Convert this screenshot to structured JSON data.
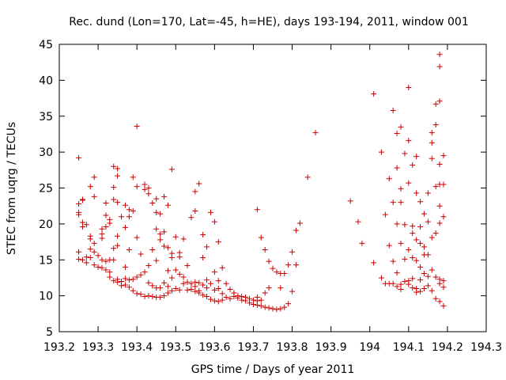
{
  "chart_data": {
    "type": "scatter",
    "title": "Rec. dund (Lon=170, Lat=-45, h=HE), days 193-194, 2011, window 001",
    "xlabel": "GPS time / Days of year 2011",
    "ylabel": "STEC from uqrg / TECUs",
    "xlim": [
      193.2,
      194.3
    ],
    "ylim": [
      5,
      45
    ],
    "xticks": [
      193.2,
      193.3,
      193.4,
      193.5,
      193.6,
      193.7,
      193.8,
      193.9,
      194,
      194.1,
      194.2,
      194.3
    ],
    "xtick_labels": [
      "193.2",
      "193.3",
      "193.4",
      "193.5",
      "193.6",
      "193.7",
      "193.8",
      "193.9",
      "194",
      "194.1",
      "194.2",
      "194.3"
    ],
    "yticks": [
      5,
      10,
      15,
      20,
      25,
      30,
      35,
      40,
      45
    ],
    "ytick_labels": [
      "5",
      "10",
      "15",
      "20",
      "25",
      "30",
      "35",
      "40",
      "45"
    ],
    "grid": false,
    "marker": "+",
    "color": "#cc0000",
    "series": [
      {
        "name": "STEC",
        "points": [
          [
            193.25,
            29.2
          ],
          [
            193.25,
            22.8
          ],
          [
            193.25,
            21.6
          ],
          [
            193.25,
            21.3
          ],
          [
            193.25,
            16.1
          ],
          [
            193.25,
            15.1
          ],
          [
            193.26,
            23.4
          ],
          [
            193.26,
            23.3
          ],
          [
            193.26,
            20.2
          ],
          [
            193.26,
            19.6
          ],
          [
            193.26,
            15.0
          ],
          [
            193.27,
            19.9
          ],
          [
            193.27,
            15.4
          ],
          [
            193.27,
            14.6
          ],
          [
            193.28,
            25.2
          ],
          [
            193.28,
            18.3
          ],
          [
            193.28,
            17.9
          ],
          [
            193.28,
            16.5
          ],
          [
            193.28,
            15.3
          ],
          [
            193.29,
            26.5
          ],
          [
            193.29,
            23.8
          ],
          [
            193.29,
            17.3
          ],
          [
            193.29,
            16.1
          ],
          [
            193.29,
            14.3
          ],
          [
            193.3,
            15.6
          ],
          [
            193.3,
            14.0
          ],
          [
            193.31,
            19.3
          ],
          [
            193.31,
            18.6
          ],
          [
            193.31,
            18.0
          ],
          [
            193.31,
            15.0
          ],
          [
            193.31,
            13.9
          ],
          [
            193.32,
            22.9
          ],
          [
            193.32,
            21.2
          ],
          [
            193.32,
            19.6
          ],
          [
            193.32,
            14.8
          ],
          [
            193.32,
            13.6
          ],
          [
            193.33,
            20.6
          ],
          [
            193.33,
            20.1
          ],
          [
            193.33,
            15.0
          ],
          [
            193.33,
            13.3
          ],
          [
            193.33,
            12.6
          ],
          [
            193.34,
            28.0
          ],
          [
            193.34,
            25.1
          ],
          [
            193.34,
            23.4
          ],
          [
            193.34,
            16.6
          ],
          [
            193.34,
            15.0
          ],
          [
            193.34,
            12.1
          ],
          [
            193.35,
            27.7
          ],
          [
            193.35,
            26.7
          ],
          [
            193.35,
            23.0
          ],
          [
            193.35,
            18.3
          ],
          [
            193.35,
            17.0
          ],
          [
            193.35,
            12.3
          ],
          [
            193.35,
            11.9
          ],
          [
            193.36,
            21.0
          ],
          [
            193.36,
            12.0
          ],
          [
            193.36,
            11.4
          ],
          [
            193.37,
            22.6
          ],
          [
            193.37,
            19.5
          ],
          [
            193.37,
            14.0
          ],
          [
            193.37,
            12.4
          ],
          [
            193.37,
            11.5
          ],
          [
            193.38,
            22.0
          ],
          [
            193.38,
            21.0
          ],
          [
            193.38,
            16.4
          ],
          [
            193.38,
            12.2
          ],
          [
            193.38,
            11.2
          ],
          [
            193.39,
            26.5
          ],
          [
            193.39,
            21.8
          ],
          [
            193.39,
            12.3
          ],
          [
            193.39,
            10.7
          ],
          [
            193.4,
            33.6
          ],
          [
            193.4,
            25.2
          ],
          [
            193.4,
            18.1
          ],
          [
            193.4,
            12.6
          ],
          [
            193.4,
            10.3
          ],
          [
            193.41,
            15.8
          ],
          [
            193.41,
            12.9
          ],
          [
            193.41,
            10.2
          ],
          [
            193.42,
            25.5
          ],
          [
            193.42,
            24.8
          ],
          [
            193.42,
            13.3
          ],
          [
            193.42,
            9.9
          ],
          [
            193.43,
            25.0
          ],
          [
            193.43,
            24.2
          ],
          [
            193.43,
            14.2
          ],
          [
            193.43,
            11.8
          ],
          [
            193.43,
            10.0
          ],
          [
            193.44,
            22.9
          ],
          [
            193.44,
            16.4
          ],
          [
            193.44,
            11.4
          ],
          [
            193.44,
            9.9
          ],
          [
            193.45,
            23.5
          ],
          [
            193.45,
            21.6
          ],
          [
            193.45,
            19.3
          ],
          [
            193.45,
            14.9
          ],
          [
            193.45,
            11.1
          ],
          [
            193.45,
            9.8
          ],
          [
            193.46,
            21.4
          ],
          [
            193.46,
            18.6
          ],
          [
            193.46,
            17.8
          ],
          [
            193.46,
            11.1
          ],
          [
            193.46,
            9.8
          ],
          [
            193.47,
            23.8
          ],
          [
            193.47,
            18.9
          ],
          [
            193.47,
            16.9
          ],
          [
            193.47,
            11.8
          ],
          [
            193.47,
            10.0
          ],
          [
            193.48,
            22.6
          ],
          [
            193.48,
            16.7
          ],
          [
            193.48,
            13.5
          ],
          [
            193.48,
            11.3
          ],
          [
            193.48,
            10.4
          ],
          [
            193.49,
            27.6
          ],
          [
            193.49,
            15.9
          ],
          [
            193.49,
            15.3
          ],
          [
            193.49,
            12.5
          ],
          [
            193.49,
            10.7
          ],
          [
            193.5,
            18.2
          ],
          [
            193.5,
            13.6
          ],
          [
            193.5,
            11.0
          ],
          [
            193.51,
            16.0
          ],
          [
            193.51,
            15.4
          ],
          [
            193.51,
            13.0
          ],
          [
            193.51,
            10.8
          ],
          [
            193.52,
            17.9
          ],
          [
            193.52,
            12.6
          ],
          [
            193.52,
            11.7
          ],
          [
            193.53,
            14.2
          ],
          [
            193.53,
            11.9
          ],
          [
            193.53,
            10.8
          ],
          [
            193.54,
            20.9
          ],
          [
            193.54,
            11.7
          ],
          [
            193.54,
            10.9
          ],
          [
            193.55,
            24.5
          ],
          [
            193.55,
            21.8
          ],
          [
            193.55,
            11.9
          ],
          [
            193.55,
            11.3
          ],
          [
            193.55,
            10.6
          ],
          [
            193.56,
            25.6
          ],
          [
            193.56,
            11.8
          ],
          [
            193.56,
            10.7
          ],
          [
            193.56,
            10.4
          ],
          [
            193.57,
            18.5
          ],
          [
            193.57,
            15.3
          ],
          [
            193.57,
            11.5
          ],
          [
            193.57,
            10.1
          ],
          [
            193.58,
            16.8
          ],
          [
            193.58,
            12.2
          ],
          [
            193.58,
            11.1
          ],
          [
            193.58,
            9.9
          ],
          [
            193.59,
            21.6
          ],
          [
            193.59,
            11.7
          ],
          [
            193.59,
            9.5
          ],
          [
            193.6,
            20.3
          ],
          [
            193.6,
            13.3
          ],
          [
            193.6,
            10.8
          ],
          [
            193.6,
            9.3
          ],
          [
            193.61,
            17.5
          ],
          [
            193.61,
            12.1
          ],
          [
            193.61,
            11.0
          ],
          [
            193.61,
            9.2
          ],
          [
            193.62,
            13.9
          ],
          [
            193.62,
            10.3
          ],
          [
            193.62,
            9.4
          ],
          [
            193.63,
            11.7
          ],
          [
            193.63,
            9.8
          ],
          [
            193.64,
            10.9
          ],
          [
            193.64,
            9.6
          ],
          [
            193.65,
            10.4
          ],
          [
            193.65,
            9.9
          ],
          [
            193.66,
            10.0
          ],
          [
            193.66,
            9.7
          ],
          [
            193.67,
            9.9
          ],
          [
            193.67,
            9.4
          ],
          [
            193.68,
            9.8
          ],
          [
            193.68,
            9.3
          ],
          [
            193.69,
            9.6
          ],
          [
            193.69,
            9.0
          ],
          [
            193.7,
            9.4
          ],
          [
            193.7,
            8.8
          ],
          [
            193.71,
            22.0
          ],
          [
            193.71,
            9.8
          ],
          [
            193.71,
            9.3
          ],
          [
            193.71,
            8.7
          ],
          [
            193.72,
            18.1
          ],
          [
            193.72,
            9.4
          ],
          [
            193.72,
            8.6
          ],
          [
            193.73,
            16.4
          ],
          [
            193.73,
            10.4
          ],
          [
            193.73,
            8.4
          ],
          [
            193.74,
            14.8
          ],
          [
            193.74,
            11.1
          ],
          [
            193.74,
            8.3
          ],
          [
            193.75,
            13.8
          ],
          [
            193.75,
            8.2
          ],
          [
            193.76,
            13.3
          ],
          [
            193.76,
            8.1
          ],
          [
            193.77,
            13.1
          ],
          [
            193.77,
            11.1
          ],
          [
            193.77,
            8.2
          ],
          [
            193.78,
            13.1
          ],
          [
            193.78,
            8.4
          ],
          [
            193.79,
            14.3
          ],
          [
            193.79,
            8.9
          ],
          [
            193.8,
            16.1
          ],
          [
            193.8,
            10.6
          ],
          [
            193.81,
            14.3
          ],
          [
            193.81,
            19.1
          ],
          [
            193.82,
            20.1
          ],
          [
            193.84,
            26.5
          ],
          [
            193.86,
            32.7
          ],
          [
            193.95,
            23.2
          ],
          [
            193.97,
            20.3
          ],
          [
            193.98,
            17.3
          ],
          [
            194.01,
            38.1
          ],
          [
            194.01,
            14.6
          ],
          [
            194.03,
            30.0
          ],
          [
            194.03,
            12.5
          ],
          [
            194.04,
            21.3
          ],
          [
            194.04,
            11.7
          ],
          [
            194.05,
            26.3
          ],
          [
            194.05,
            17.0
          ],
          [
            194.05,
            11.7
          ],
          [
            194.06,
            35.8
          ],
          [
            194.06,
            23.0
          ],
          [
            194.06,
            14.8
          ],
          [
            194.06,
            11.7
          ],
          [
            194.07,
            32.6
          ],
          [
            194.07,
            27.8
          ],
          [
            194.07,
            20.0
          ],
          [
            194.07,
            13.2
          ],
          [
            194.07,
            11.3
          ],
          [
            194.08,
            33.5
          ],
          [
            194.08,
            24.9
          ],
          [
            194.08,
            23.0
          ],
          [
            194.08,
            17.3
          ],
          [
            194.08,
            11.6
          ],
          [
            194.08,
            10.9
          ],
          [
            194.09,
            29.8
          ],
          [
            194.09,
            19.9
          ],
          [
            194.09,
            15.1
          ],
          [
            194.09,
            12.0
          ],
          [
            194.1,
            39.0
          ],
          [
            194.1,
            31.6
          ],
          [
            194.1,
            25.7
          ],
          [
            194.1,
            16.4
          ],
          [
            194.1,
            12.1
          ],
          [
            194.1,
            11.6
          ],
          [
            194.11,
            28.2
          ],
          [
            194.11,
            19.7
          ],
          [
            194.11,
            18.7
          ],
          [
            194.11,
            15.3
          ],
          [
            194.11,
            12.4
          ],
          [
            194.11,
            11.1
          ],
          [
            194.12,
            29.4
          ],
          [
            194.12,
            24.3
          ],
          [
            194.12,
            17.8
          ],
          [
            194.12,
            14.9
          ],
          [
            194.12,
            11.0
          ],
          [
            194.12,
            10.5
          ],
          [
            194.13,
            23.1
          ],
          [
            194.13,
            19.6
          ],
          [
            194.13,
            17.3
          ],
          [
            194.13,
            14.0
          ],
          [
            194.13,
            12.2
          ],
          [
            194.13,
            10.6
          ],
          [
            194.14,
            21.4
          ],
          [
            194.14,
            16.8
          ],
          [
            194.14,
            15.7
          ],
          [
            194.14,
            13.1
          ],
          [
            194.14,
            11.0
          ],
          [
            194.15,
            24.3
          ],
          [
            194.15,
            20.3
          ],
          [
            194.15,
            15.7
          ],
          [
            194.15,
            12.7
          ],
          [
            194.15,
            11.4
          ],
          [
            194.16,
            32.7
          ],
          [
            194.16,
            31.3
          ],
          [
            194.16,
            29.1
          ],
          [
            194.16,
            18.1
          ],
          [
            194.16,
            13.6
          ],
          [
            194.16,
            10.7
          ],
          [
            194.17,
            36.7
          ],
          [
            194.17,
            33.8
          ],
          [
            194.17,
            25.2
          ],
          [
            194.17,
            18.7
          ],
          [
            194.17,
            12.6
          ],
          [
            194.17,
            9.6
          ],
          [
            194.18,
            43.6
          ],
          [
            194.18,
            41.9
          ],
          [
            194.18,
            37.1
          ],
          [
            194.18,
            28.3
          ],
          [
            194.18,
            25.5
          ],
          [
            194.18,
            22.5
          ],
          [
            194.18,
            20.1
          ],
          [
            194.18,
            12.3
          ],
          [
            194.18,
            11.7
          ],
          [
            194.18,
            9.2
          ],
          [
            194.19,
            29.5
          ],
          [
            194.19,
            25.5
          ],
          [
            194.19,
            21.0
          ],
          [
            194.19,
            12.1
          ],
          [
            194.19,
            11.2
          ],
          [
            194.19,
            8.6
          ]
        ]
      }
    ]
  }
}
